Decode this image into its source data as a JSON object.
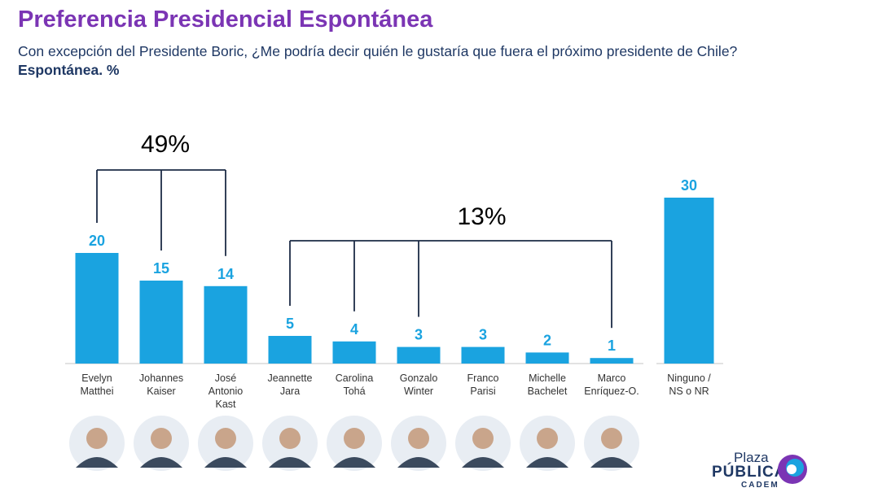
{
  "header": {
    "title": "Preferencia Presidencial Espontánea",
    "subtitle": "Con excepción del Presidente Boric, ¿Me podría decir quién le gustaría que fuera el próximo presidente de Chile?",
    "subtitle_bold": "Espontánea. %"
  },
  "colors": {
    "title": "#7b35b4",
    "bar": "#1aa3e0",
    "value_label": "#1aa3e0",
    "text": "#1f3864",
    "bracket": "#1c2b45"
  },
  "chart_data": [
    {
      "type": "bar",
      "categories": [
        "Evelyn Matthei",
        "Johannes Kaiser",
        "José Antonio Kast",
        "Jeannette Jara",
        "Carolina Tohá",
        "Gonzalo Winter",
        "Franco Parisi",
        "Michelle Bachelet",
        "Marco Enríquez-O."
      ],
      "category_lines": [
        [
          "Evelyn",
          "Matthei"
        ],
        [
          "Johannes",
          "Kaiser"
        ],
        [
          "José",
          "Antonio",
          "Kast"
        ],
        [
          "Jeannette",
          "Jara"
        ],
        [
          "Carolina",
          "Tohá"
        ],
        [
          "Gonzalo",
          "Winter"
        ],
        [
          "Franco",
          "Parisi"
        ],
        [
          "Michelle",
          "Bachelet"
        ],
        [
          "Marco",
          "Enríquez-O."
        ]
      ],
      "values": [
        20,
        15,
        14,
        5,
        4,
        3,
        3,
        2,
        1
      ],
      "ylim": [
        0,
        30
      ],
      "grid": false,
      "annotations": [
        {
          "text": "49%",
          "categories": [
            "Evelyn Matthei",
            "Johannes Kaiser",
            "José Antonio Kast"
          ]
        },
        {
          "text": "13%",
          "categories": [
            "Jeannette Jara",
            "Carolina Tohá",
            "Gonzalo Winter",
            "Marco Enríquez-O."
          ]
        }
      ]
    },
    {
      "type": "bar",
      "categories": [
        "Ninguno / NS o NR"
      ],
      "category_lines": [
        [
          "Ninguno /",
          "NS o NR"
        ]
      ],
      "values": [
        30
      ],
      "ylim": [
        0,
        30
      ],
      "grid": false
    }
  ],
  "logo": {
    "line1": "Plaza",
    "line2": "PÚBLICA",
    "line3": "CADEM"
  }
}
